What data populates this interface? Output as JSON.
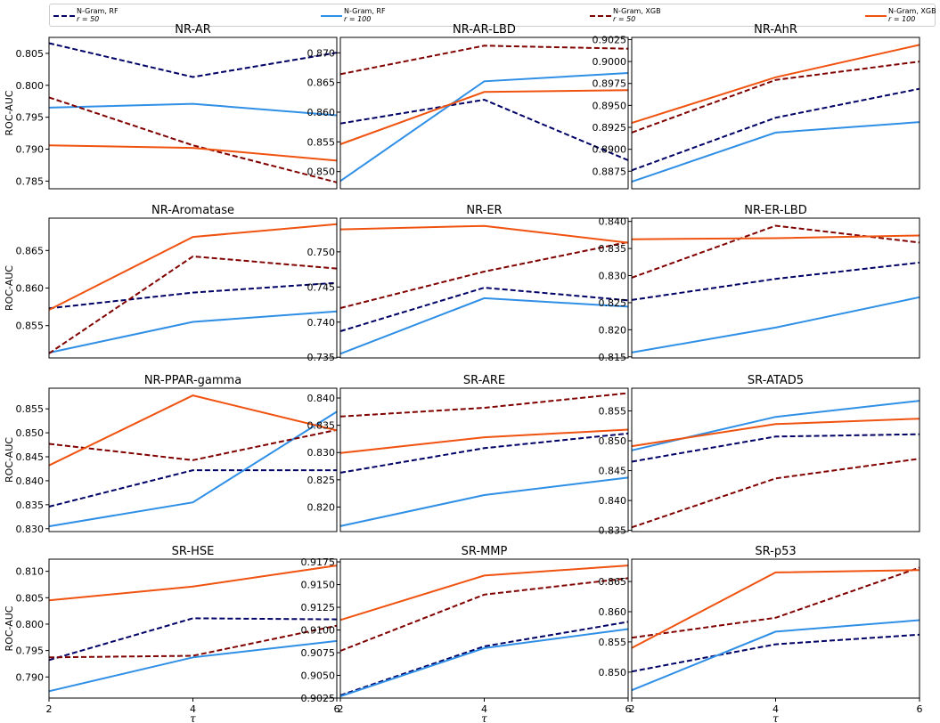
{
  "legend": [
    {
      "label": "N-Gram, RF",
      "sublabel": "r = 50",
      "color": "#000066",
      "dashed": true
    },
    {
      "label": "N-Gram, RF",
      "sublabel": "r = 100",
      "color": "#2f8fe6",
      "dashed": false
    },
    {
      "label": "N-Gram, XGB",
      "sublabel": "r = 50",
      "color": "#800000",
      "dashed": true
    },
    {
      "label": "N-Gram, XGB",
      "sublabel": "r = 100",
      "color": "#f0520f",
      "dashed": false
    }
  ],
  "chart_data": [
    {
      "type": "line",
      "title": "NR-AR",
      "ylabel": "ROC-AUC",
      "xlabel": "",
      "x": [
        2,
        4,
        6
      ],
      "xlim": [
        2,
        6
      ],
      "ylim": [
        0.7838,
        0.8075
      ],
      "yticks": [
        "0.785",
        "0.790",
        "0.795",
        "0.800",
        "0.805"
      ],
      "xticks": [],
      "series": [
        {
          "name": "N-Gram, RF r=50",
          "values": [
            0.8066,
            0.8013,
            0.8051
          ]
        },
        {
          "name": "N-Gram, RF r=100",
          "values": [
            0.7965,
            0.7971,
            0.7953
          ]
        },
        {
          "name": "N-Gram, XGB r=50",
          "values": [
            0.7981,
            0.7906,
            0.7848
          ]
        },
        {
          "name": "N-Gram, XGB r=100",
          "values": [
            0.7906,
            0.7902,
            0.7882
          ]
        }
      ]
    },
    {
      "type": "line",
      "title": "NR-AR-LBD",
      "ylabel": "",
      "xlabel": "",
      "x": [
        2,
        4,
        6
      ],
      "xlim": [
        2,
        6
      ],
      "ylim": [
        0.8471,
        0.8726
      ],
      "yticks": [
        "0.850",
        "0.855",
        "0.860",
        "0.865",
        "0.870"
      ],
      "xticks": [],
      "series": [
        {
          "name": "N-Gram, RF r=50",
          "values": [
            0.8581,
            0.8621,
            0.8519
          ]
        },
        {
          "name": "N-Gram, RF r=100",
          "values": [
            0.8484,
            0.8652,
            0.8666
          ]
        },
        {
          "name": "N-Gram, XGB r=50",
          "values": [
            0.8664,
            0.8712,
            0.8707
          ]
        },
        {
          "name": "N-Gram, XGB r=100",
          "values": [
            0.8546,
            0.8634,
            0.8637
          ]
        }
      ]
    },
    {
      "type": "line",
      "title": "NR-AhR",
      "ylabel": "",
      "xlabel": "",
      "x": [
        2,
        4,
        6
      ],
      "xlim": [
        2,
        6
      ],
      "ylim": [
        0.8855,
        0.90275
      ],
      "yticks": [
        "0.8875",
        "0.8900",
        "0.8925",
        "0.8950",
        "0.8975",
        "0.9000",
        "0.9025"
      ],
      "xticks": [],
      "series": [
        {
          "name": "N-Gram, RF r=50",
          "values": [
            0.8876,
            0.8936,
            0.8969
          ]
        },
        {
          "name": "N-Gram, RF r=100",
          "values": [
            0.8863,
            0.8919,
            0.8931
          ]
        },
        {
          "name": "N-Gram, XGB r=50",
          "values": [
            0.8919,
            0.8979,
            0.9
          ]
        },
        {
          "name": "N-Gram, XGB r=100",
          "values": [
            0.893,
            0.8982,
            0.9019
          ]
        }
      ]
    },
    {
      "type": "line",
      "title": "NR-Aromatase",
      "ylabel": "ROC-AUC",
      "xlabel": "",
      "x": [
        2,
        4,
        6
      ],
      "xlim": [
        2,
        6
      ],
      "ylim": [
        0.8507,
        0.8693
      ],
      "yticks": [
        "0.855",
        "0.860",
        "0.865"
      ],
      "xticks": [],
      "series": [
        {
          "name": "N-Gram, RF r=50",
          "values": [
            0.8573,
            0.8594,
            0.8607
          ]
        },
        {
          "name": "N-Gram, RF r=100",
          "values": [
            0.8514,
            0.8555,
            0.8569
          ]
        },
        {
          "name": "N-Gram, XGB r=50",
          "values": [
            0.8513,
            0.8642,
            0.8626
          ]
        },
        {
          "name": "N-Gram, XGB r=100",
          "values": [
            0.8571,
            0.8668,
            0.8685
          ]
        }
      ]
    },
    {
      "type": "line",
      "title": "NR-ER",
      "ylabel": "",
      "xlabel": "",
      "x": [
        2,
        4,
        6
      ],
      "xlim": [
        2,
        6
      ],
      "ylim": [
        0.7349,
        0.7548
      ],
      "yticks": [
        "0.735",
        "0.740",
        "0.745",
        "0.750"
      ],
      "xticks": [],
      "series": [
        {
          "name": "N-Gram, RF r=50",
          "values": [
            0.7387,
            0.7449,
            0.7431
          ]
        },
        {
          "name": "N-Gram, RF r=100",
          "values": [
            0.7355,
            0.7434,
            0.7422
          ]
        },
        {
          "name": "N-Gram, XGB r=50",
          "values": [
            0.742,
            0.7472,
            0.7514
          ]
        },
        {
          "name": "N-Gram, XGB r=100",
          "values": [
            0.7532,
            0.7537,
            0.7513
          ]
        }
      ]
    },
    {
      "type": "line",
      "title": "NR-ER-LBD",
      "ylabel": "",
      "xlabel": "",
      "x": [
        2,
        4,
        6
      ],
      "xlim": [
        2,
        6
      ],
      "ylim": [
        0.8148,
        0.8406
      ],
      "yticks": [
        "0.815",
        "0.820",
        "0.825",
        "0.830",
        "0.835",
        "0.840"
      ],
      "xticks": [],
      "series": [
        {
          "name": "N-Gram, RF r=50",
          "values": [
            0.8255,
            0.8294,
            0.8324
          ]
        },
        {
          "name": "N-Gram, RF r=100",
          "values": [
            0.8158,
            0.8204,
            0.826
          ]
        },
        {
          "name": "N-Gram, XGB r=50",
          "values": [
            0.8296,
            0.8392,
            0.8361
          ]
        },
        {
          "name": "N-Gram, XGB r=100",
          "values": [
            0.8367,
            0.8369,
            0.8374
          ]
        }
      ]
    },
    {
      "type": "line",
      "title": "NR-PPAR-gamma",
      "ylabel": "ROC-AUC",
      "xlabel": "",
      "x": [
        2,
        4,
        6
      ],
      "xlim": [
        2,
        6
      ],
      "ylim": [
        0.8294,
        0.8593
      ],
      "yticks": [
        "0.830",
        "0.835",
        "0.840",
        "0.845",
        "0.850",
        "0.855"
      ],
      "xticks": [],
      "series": [
        {
          "name": "N-Gram, RF r=50",
          "values": [
            0.8346,
            0.8422,
            0.8422
          ]
        },
        {
          "name": "N-Gram, RF r=100",
          "values": [
            0.8305,
            0.8355,
            0.8544
          ]
        },
        {
          "name": "N-Gram, XGB r=50",
          "values": [
            0.8477,
            0.8443,
            0.8506
          ]
        },
        {
          "name": "N-Gram, XGB r=100",
          "values": [
            0.8432,
            0.8578,
            0.8505
          ]
        }
      ]
    },
    {
      "type": "line",
      "title": "SR-ARE",
      "ylabel": "",
      "xlabel": "",
      "x": [
        2,
        4,
        6
      ],
      "xlim": [
        2,
        6
      ],
      "ylim": [
        0.8155,
        0.8418
      ],
      "yticks": [
        "0.820",
        "0.825",
        "0.830",
        "0.835",
        "0.840"
      ],
      "xticks": [],
      "series": [
        {
          "name": "N-Gram, RF r=50",
          "values": [
            0.8263,
            0.8308,
            0.8335
          ]
        },
        {
          "name": "N-Gram, RF r=100",
          "values": [
            0.8165,
            0.8222,
            0.8254
          ]
        },
        {
          "name": "N-Gram, XGB r=50",
          "values": [
            0.8366,
            0.8382,
            0.8409
          ]
        },
        {
          "name": "N-Gram, XGB r=100",
          "values": [
            0.8299,
            0.8328,
            0.8342
          ]
        }
      ]
    },
    {
      "type": "line",
      "title": "SR-ATAD5",
      "ylabel": "",
      "xlabel": "",
      "x": [
        2,
        4,
        6
      ],
      "xlim": [
        2,
        6
      ],
      "ylim": [
        0.8348,
        0.8588
      ],
      "yticks": [
        "0.835",
        "0.840",
        "0.845",
        "0.850",
        "0.855"
      ],
      "xticks": [],
      "series": [
        {
          "name": "N-Gram, RF r=50",
          "values": [
            0.8465,
            0.8507,
            0.8511
          ]
        },
        {
          "name": "N-Gram, RF r=100",
          "values": [
            0.8484,
            0.854,
            0.8567
          ]
        },
        {
          "name": "N-Gram, XGB r=50",
          "values": [
            0.8355,
            0.8437,
            0.847
          ]
        },
        {
          "name": "N-Gram, XGB r=100",
          "values": [
            0.8491,
            0.8528,
            0.8537
          ]
        }
      ]
    },
    {
      "type": "line",
      "title": "SR-HSE",
      "ylabel": "ROC-AUC",
      "xlabel": "τ",
      "x": [
        2,
        4,
        6
      ],
      "xlim": [
        2,
        6
      ],
      "ylim": [
        0.786,
        0.8123
      ],
      "yticks": [
        "0.790",
        "0.795",
        "0.800",
        "0.805",
        "0.810"
      ],
      "xticks": [
        "2",
        "4",
        "6"
      ],
      "series": [
        {
          "name": "N-Gram, RF r=50",
          "values": [
            0.7932,
            0.8011,
            0.8009
          ]
        },
        {
          "name": "N-Gram, RF r=100",
          "values": [
            0.7873,
            0.7937,
            0.7968
          ]
        },
        {
          "name": "N-Gram, XGB r=50",
          "values": [
            0.7937,
            0.794,
            0.7997
          ]
        },
        {
          "name": "N-Gram, XGB r=100",
          "values": [
            0.8045,
            0.8071,
            0.8111
          ]
        }
      ]
    },
    {
      "type": "line",
      "title": "SR-MMP",
      "ylabel": "",
      "xlabel": "τ",
      "x": [
        2,
        4,
        6
      ],
      "xlim": [
        2,
        6
      ],
      "ylim": [
        0.9025,
        0.9178
      ],
      "yticks": [
        "0.9025",
        "0.9050",
        "0.9075",
        "0.9100",
        "0.9125",
        "0.9150",
        "0.9175"
      ],
      "xticks": [
        "2",
        "4",
        "6"
      ],
      "series": [
        {
          "name": "N-Gram, RF r=50",
          "values": [
            0.9028,
            0.9082,
            0.9109
          ]
        },
        {
          "name": "N-Gram, RF r=100",
          "values": [
            0.9027,
            0.908,
            0.9101
          ]
        },
        {
          "name": "N-Gram, XGB r=50",
          "values": [
            0.9077,
            0.9139,
            0.9157
          ]
        },
        {
          "name": "N-Gram, XGB r=100",
          "values": [
            0.9111,
            0.916,
            0.9171
          ]
        }
      ]
    },
    {
      "type": "line",
      "title": "SR-p53",
      "ylabel": "",
      "xlabel": "τ",
      "x": [
        2,
        4,
        6
      ],
      "xlim": [
        2,
        6
      ],
      "ylim": [
        0.8457,
        0.8687
      ],
      "yticks": [
        "0.850",
        "0.855",
        "0.860",
        "0.865"
      ],
      "xticks": [
        "2",
        "4",
        "6"
      ],
      "series": [
        {
          "name": "N-Gram, RF r=50",
          "values": [
            0.8501,
            0.8546,
            0.8562
          ]
        },
        {
          "name": "N-Gram, RF r=100",
          "values": [
            0.847,
            0.8567,
            0.8586
          ]
        },
        {
          "name": "N-Gram, XGB r=50",
          "values": [
            0.8557,
            0.859,
            0.8673
          ]
        },
        {
          "name": "N-Gram, XGB r=100",
          "values": [
            0.854,
            0.8665,
            0.8669
          ]
        }
      ]
    }
  ]
}
